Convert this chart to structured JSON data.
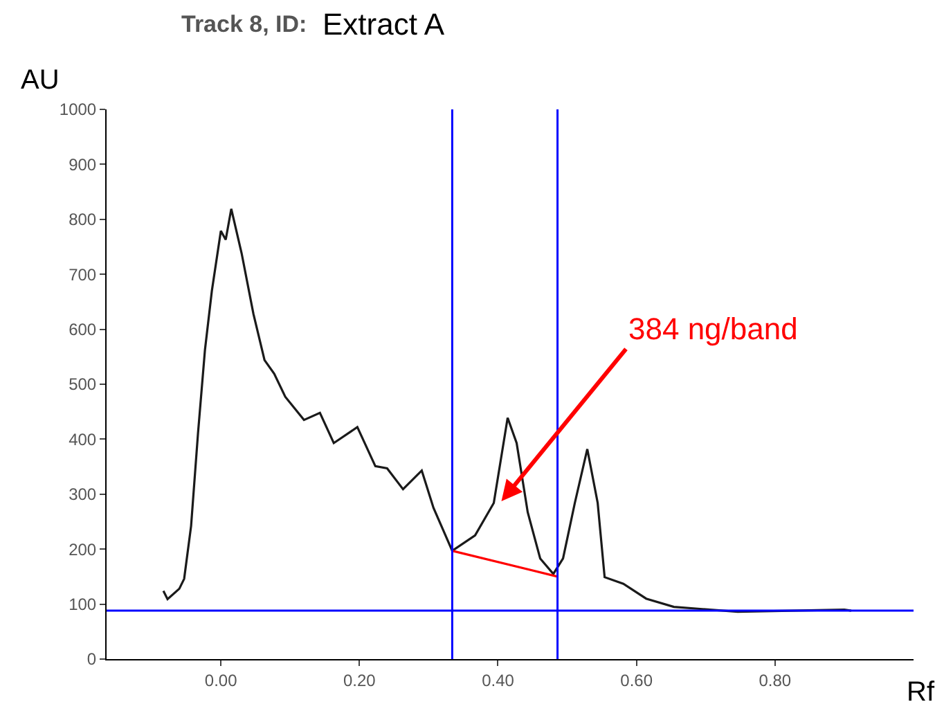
{
  "chart_data": {
    "type": "line",
    "title": "Track 8, ID:",
    "subtitle": "Extract A",
    "xlabel": "Rf",
    "ylabel": "AU",
    "xlim": [
      -0.165,
      1.0
    ],
    "ylim": [
      0,
      1000
    ],
    "xticks": [
      {
        "value": 0,
        "label": "0.00"
      },
      {
        "value": 0.2,
        "label": "0.20"
      },
      {
        "value": 0.4,
        "label": "0.40"
      },
      {
        "value": 0.6,
        "label": "0.60"
      },
      {
        "value": 0.8,
        "label": "0.80"
      }
    ],
    "yticks": [
      0,
      100,
      200,
      300,
      400,
      500,
      600,
      700,
      800,
      900,
      1000
    ],
    "marker": "none",
    "line_style": "solid",
    "series": [
      {
        "color": "#1a1a1a",
        "x": [
          -0.083,
          -0.077,
          -0.06,
          -0.053,
          -0.043,
          -0.033,
          -0.023,
          -0.013,
          0.0,
          0.007,
          0.015,
          0.03,
          0.047,
          0.063,
          0.077,
          0.093,
          0.12,
          0.143,
          0.163,
          0.197,
          0.223,
          0.24,
          0.263,
          0.29,
          0.307,
          0.334,
          0.367,
          0.394,
          0.414,
          0.427,
          0.443,
          0.461,
          0.48,
          0.494,
          0.511,
          0.529,
          0.544,
          0.554,
          0.581,
          0.614,
          0.654,
          0.746,
          0.9,
          0.91
        ],
        "values": [
          124,
          109,
          128,
          146,
          242,
          411,
          562,
          670,
          779,
          763,
          819,
          738,
          628,
          544,
          519,
          477,
          435,
          448,
          393,
          422,
          351,
          347,
          309,
          343,
          275,
          197,
          225,
          284,
          439,
          393,
          267,
          183,
          155,
          183,
          284,
          382,
          284,
          149,
          137,
          110,
          95,
          86,
          90,
          88
        ]
      },
      {
        "color": "#ff0000",
        "x": [
          0.334,
          0.486
        ],
        "values": [
          197,
          150
        ]
      }
    ],
    "ref_lines": [
      {
        "axis": "x",
        "value": 0.334,
        "color": "#0000ff"
      },
      {
        "axis": "x",
        "value": 0.486,
        "color": "#0000ff"
      },
      {
        "axis": "y",
        "value": 88,
        "color": "#0000ff"
      }
    ],
    "annotations": [
      {
        "text": "384 ng/band",
        "x": 0.405,
        "y": 287
      }
    ]
  }
}
